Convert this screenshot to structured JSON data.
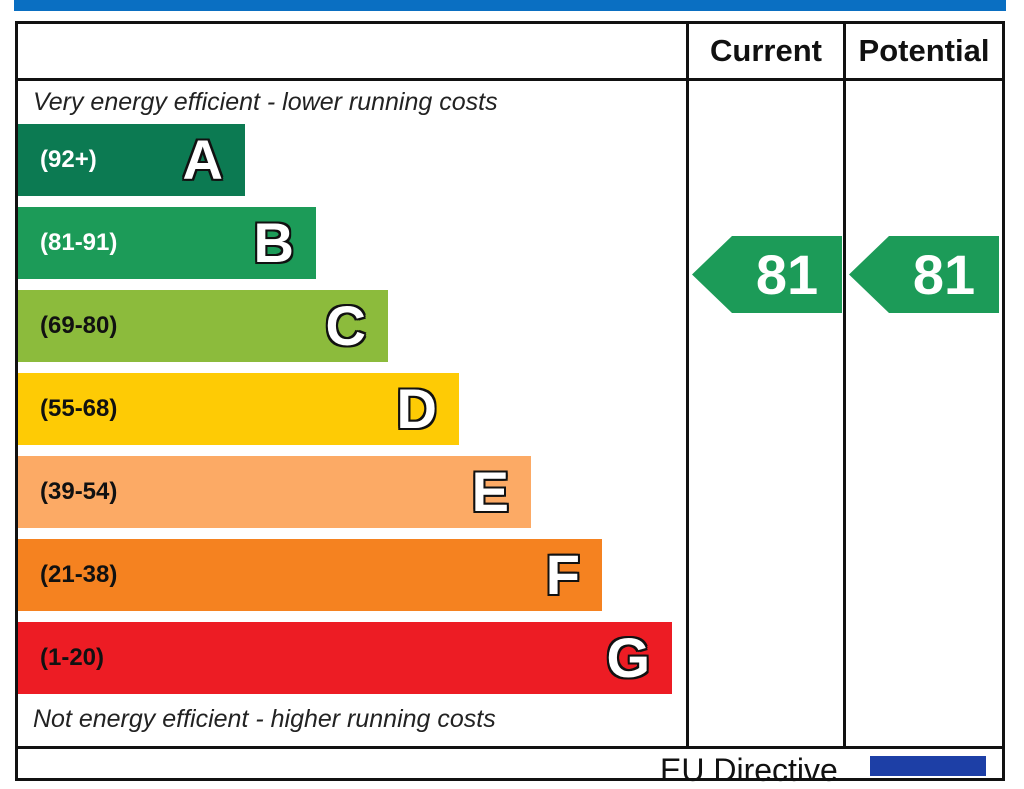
{
  "header": {
    "current_label": "Current",
    "potential_label": "Potential"
  },
  "captions": {
    "top": "Very energy efficient - lower running costs",
    "bottom": "Not energy efficient - higher running costs"
  },
  "footer": {
    "directive_text": "EU Directive"
  },
  "colors": {
    "top_bar": "#0a6fc2",
    "flag": "#1d3fa6"
  },
  "chart_data": {
    "type": "bar",
    "bands": [
      {
        "letter": "A",
        "range": "(92+)",
        "min": 92,
        "max": 100,
        "color": "#0c7a52",
        "range_text_color": "#ffffff"
      },
      {
        "letter": "B",
        "range": "(81-91)",
        "min": 81,
        "max": 91,
        "color": "#1c9b58",
        "range_text_color": "#ffffff"
      },
      {
        "letter": "C",
        "range": "(69-80)",
        "min": 69,
        "max": 80,
        "color": "#8cbb3c",
        "range_text_color": "#111111"
      },
      {
        "letter": "D",
        "range": "(55-68)",
        "min": 55,
        "max": 68,
        "color": "#fecb05",
        "range_text_color": "#111111"
      },
      {
        "letter": "E",
        "range": "(39-54)",
        "min": 39,
        "max": 54,
        "color": "#fcaa65",
        "range_text_color": "#111111"
      },
      {
        "letter": "F",
        "range": "(21-38)",
        "min": 21,
        "max": 38,
        "color": "#f58220",
        "range_text_color": "#111111"
      },
      {
        "letter": "G",
        "range": "(1-20)",
        "min": 1,
        "max": 20,
        "color": "#ed1c24",
        "range_text_color": "#111111"
      }
    ],
    "ratings": {
      "current": {
        "value": "81",
        "band": "B",
        "color": "#1c9b58"
      },
      "potential": {
        "value": "81",
        "band": "B",
        "color": "#1c9b58"
      }
    }
  }
}
